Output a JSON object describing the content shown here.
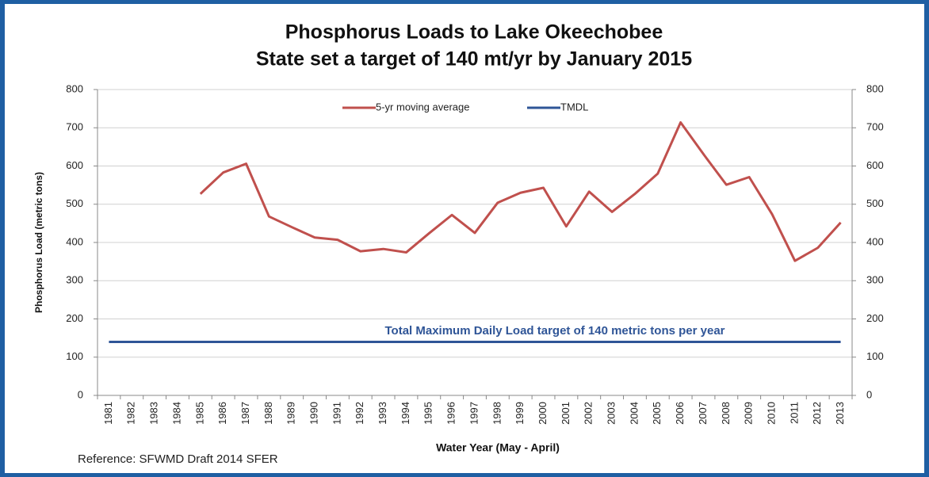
{
  "chart_data": {
    "type": "line",
    "title": "Phosphorus Loads to Lake Okeechobee",
    "subtitle": "State set a target of 140 mt/yr by January 2015",
    "x_label": "Water Year (May - April)",
    "y_label": "Phosphorus  Load (metric tons)",
    "annotation": "Total Maximum Daily Load target of 140 metric tons per year",
    "reference": "Reference: SFWMD Draft 2014 SFER",
    "categories": [
      "1981",
      "1982",
      "1983",
      "1984",
      "1985",
      "1986",
      "1987",
      "1988",
      "1989",
      "1990",
      "1991",
      "1992",
      "1993",
      "1994",
      "1995",
      "1996",
      "1997",
      "1998",
      "1999",
      "2000",
      "2001",
      "2002",
      "2003",
      "2004",
      "2005",
      "2006",
      "2007",
      "2008",
      "2009",
      "2010",
      "2011",
      "2012",
      "2013"
    ],
    "series": [
      {
        "name": "5-yr moving average",
        "color": "#c0504d",
        "values": [
          null,
          null,
          null,
          null,
          527,
          583,
          606,
          468,
          440,
          413,
          407,
          377,
          383,
          374,
          424,
          472,
          425,
          504,
          530,
          543,
          442,
          533,
          480,
          527,
          580,
          714,
          631,
          551,
          571,
          474,
          352,
          386,
          452
        ]
      },
      {
        "name": "TMDL",
        "color": "#2f5597",
        "values": [
          140,
          140,
          140,
          140,
          140,
          140,
          140,
          140,
          140,
          140,
          140,
          140,
          140,
          140,
          140,
          140,
          140,
          140,
          140,
          140,
          140,
          140,
          140,
          140,
          140,
          140,
          140,
          140,
          140,
          140,
          140,
          140,
          140
        ]
      }
    ],
    "ylim": [
      0,
      800
    ],
    "yticks": [
      0,
      100,
      200,
      300,
      400,
      500,
      600,
      700,
      800
    ],
    "y2lim": [
      0,
      800
    ],
    "y2ticks": [
      0,
      100,
      200,
      300,
      400,
      500,
      600,
      700,
      800
    ],
    "grid": true,
    "legend": "top"
  }
}
